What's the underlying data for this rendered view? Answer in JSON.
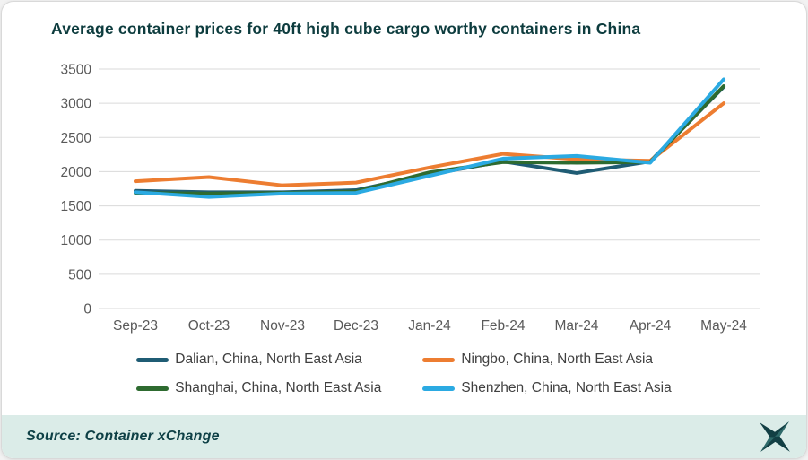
{
  "chart_data": {
    "type": "line",
    "title": "Average container prices for 40ft high cube cargo worthy containers in China",
    "categories": [
      "Sep-23",
      "Oct-23",
      "Nov-23",
      "Dec-23",
      "Jan-24",
      "Feb-24",
      "Mar-24",
      "Apr-24",
      "May-24"
    ],
    "series": [
      {
        "name": "Dalian, China, North East Asia",
        "color": "#1f5c74",
        "values": [
          1720,
          1700,
          1700,
          1730,
          1960,
          2150,
          1980,
          2150,
          3240
        ]
      },
      {
        "name": "Ningbo, China, North East Asia",
        "color": "#ed7d31",
        "values": [
          1860,
          1920,
          1800,
          1840,
          2060,
          2260,
          2180,
          2160,
          3000
        ]
      },
      {
        "name": "Shanghai, China, North East Asia",
        "color": "#2e6b30",
        "values": [
          1690,
          1680,
          1690,
          1710,
          1990,
          2140,
          2130,
          2140,
          3250
        ]
      },
      {
        "name": "Shenzhen, China, North East Asia",
        "color": "#2baae2",
        "values": [
          1700,
          1630,
          1680,
          1690,
          1940,
          2190,
          2230,
          2130,
          3350
        ]
      }
    ],
    "ylim": [
      0,
      3500
    ],
    "ytick_step": 500,
    "grid": "horizontal",
    "legend_position": "bottom",
    "axis_label_color": "#595959",
    "gridline_color": "#dadada"
  },
  "footer": {
    "source_label": "Source: Container xChange",
    "logo_icon": "xchange-star-icon",
    "background": "#dbece8",
    "text_color": "#0e4046"
  },
  "theme": {
    "title_color": "#0d3c3e",
    "card_background": "#ffffff",
    "card_border": "#d9d9d9"
  }
}
